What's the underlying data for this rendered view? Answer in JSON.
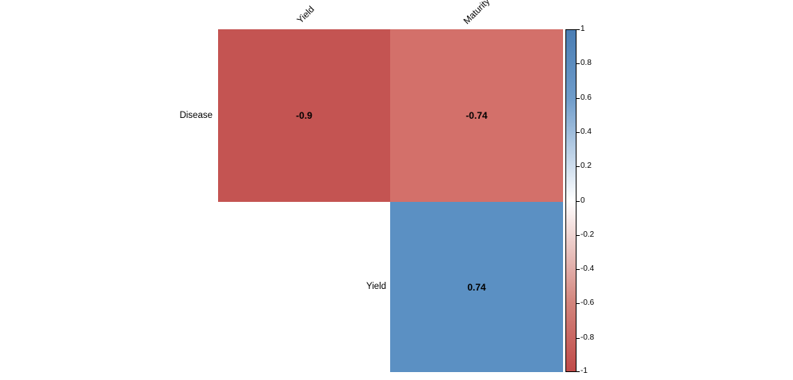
{
  "chart_data": {
    "type": "heatmap",
    "title": "",
    "description": "Correlation matrix heatmap (upper triangle, no diagonal)",
    "rows": [
      "Disease",
      "Yield"
    ],
    "columns": [
      "Yield",
      "Maturity"
    ],
    "cells": [
      {
        "row": "Disease",
        "column": "Yield",
        "value": -0.9,
        "display": "-0.9",
        "color": "#c45452"
      },
      {
        "row": "Disease",
        "column": "Maturity",
        "value": -0.74,
        "display": "-0.74",
        "color": "#d3706a"
      },
      {
        "row": "Yield",
        "column": "Maturity",
        "value": 0.74,
        "display": "0.74",
        "color": "#5b90c3"
      }
    ],
    "colorbar": {
      "min": -1,
      "max": 1,
      "position": "right",
      "top_color": "#4a7db3",
      "mid_color": "#ffffff",
      "bottom_color": "#c04b49",
      "ticks": [
        "1",
        "0.8",
        "0.6",
        "0.4",
        "0.2",
        "0",
        "-0.2",
        "-0.4",
        "-0.6",
        "-0.8",
        "-1"
      ]
    },
    "layout": {
      "background": "#ffffff",
      "grid": false,
      "value_labels": true
    }
  }
}
